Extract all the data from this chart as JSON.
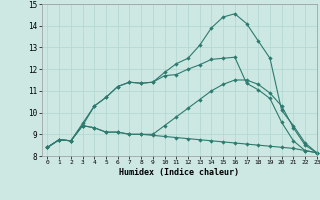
{
  "xlabel": "Humidex (Indice chaleur)",
  "bg_color": "#cde8e3",
  "line_color": "#2d7a6e",
  "grid_color": "#b0d8d0",
  "xlim": [
    -0.5,
    23
  ],
  "ylim": [
    8,
    15
  ],
  "xticks": [
    0,
    1,
    2,
    3,
    4,
    5,
    6,
    7,
    8,
    9,
    10,
    11,
    12,
    13,
    14,
    15,
    16,
    17,
    18,
    19,
    20,
    21,
    22,
    23
  ],
  "yticks": [
    8,
    9,
    10,
    11,
    12,
    13,
    14,
    15
  ],
  "line1_x": [
    0,
    1,
    2,
    3,
    4,
    5,
    6,
    7,
    8,
    9,
    10,
    11,
    12,
    13,
    14,
    15,
    16,
    17,
    18,
    19,
    20,
    21,
    22,
    23
  ],
  "line1_y": [
    8.4,
    8.75,
    8.7,
    9.4,
    9.3,
    9.1,
    9.1,
    9.0,
    9.0,
    8.95,
    8.9,
    8.85,
    8.8,
    8.75,
    8.7,
    8.65,
    8.6,
    8.55,
    8.5,
    8.45,
    8.4,
    8.35,
    8.25,
    8.15
  ],
  "line2_x": [
    0,
    1,
    2,
    3,
    4,
    5,
    6,
    7,
    8,
    9,
    10,
    11,
    12,
    13,
    14,
    15,
    16,
    17,
    18,
    19,
    20,
    21,
    22,
    23
  ],
  "line2_y": [
    8.4,
    8.75,
    8.7,
    9.4,
    9.3,
    9.1,
    9.1,
    9.0,
    9.0,
    9.0,
    9.4,
    9.8,
    10.2,
    10.6,
    11.0,
    11.3,
    11.5,
    11.5,
    11.3,
    10.9,
    10.3,
    9.3,
    8.5,
    8.15
  ],
  "line3_x": [
    0,
    1,
    2,
    3,
    4,
    5,
    6,
    7,
    8,
    9,
    10,
    11,
    12,
    13,
    14,
    15,
    16,
    17,
    18,
    19,
    20,
    21,
    22,
    23
  ],
  "line3_y": [
    8.4,
    8.75,
    8.7,
    9.4,
    10.3,
    10.7,
    11.2,
    11.4,
    11.35,
    11.4,
    11.7,
    11.75,
    12.0,
    12.2,
    12.45,
    12.5,
    12.55,
    11.35,
    11.05,
    10.65,
    9.55,
    8.7,
    8.25,
    8.15
  ],
  "line4_x": [
    0,
    1,
    2,
    3,
    4,
    5,
    6,
    7,
    8,
    9,
    10,
    11,
    12,
    13,
    14,
    15,
    16,
    17,
    18,
    19,
    20,
    21,
    22,
    23
  ],
  "line4_y": [
    8.4,
    8.75,
    8.7,
    9.5,
    10.3,
    10.7,
    11.2,
    11.4,
    11.35,
    11.4,
    11.85,
    12.25,
    12.5,
    13.1,
    13.9,
    14.4,
    14.55,
    14.1,
    13.3,
    12.5,
    10.1,
    9.4,
    8.6,
    8.15
  ]
}
